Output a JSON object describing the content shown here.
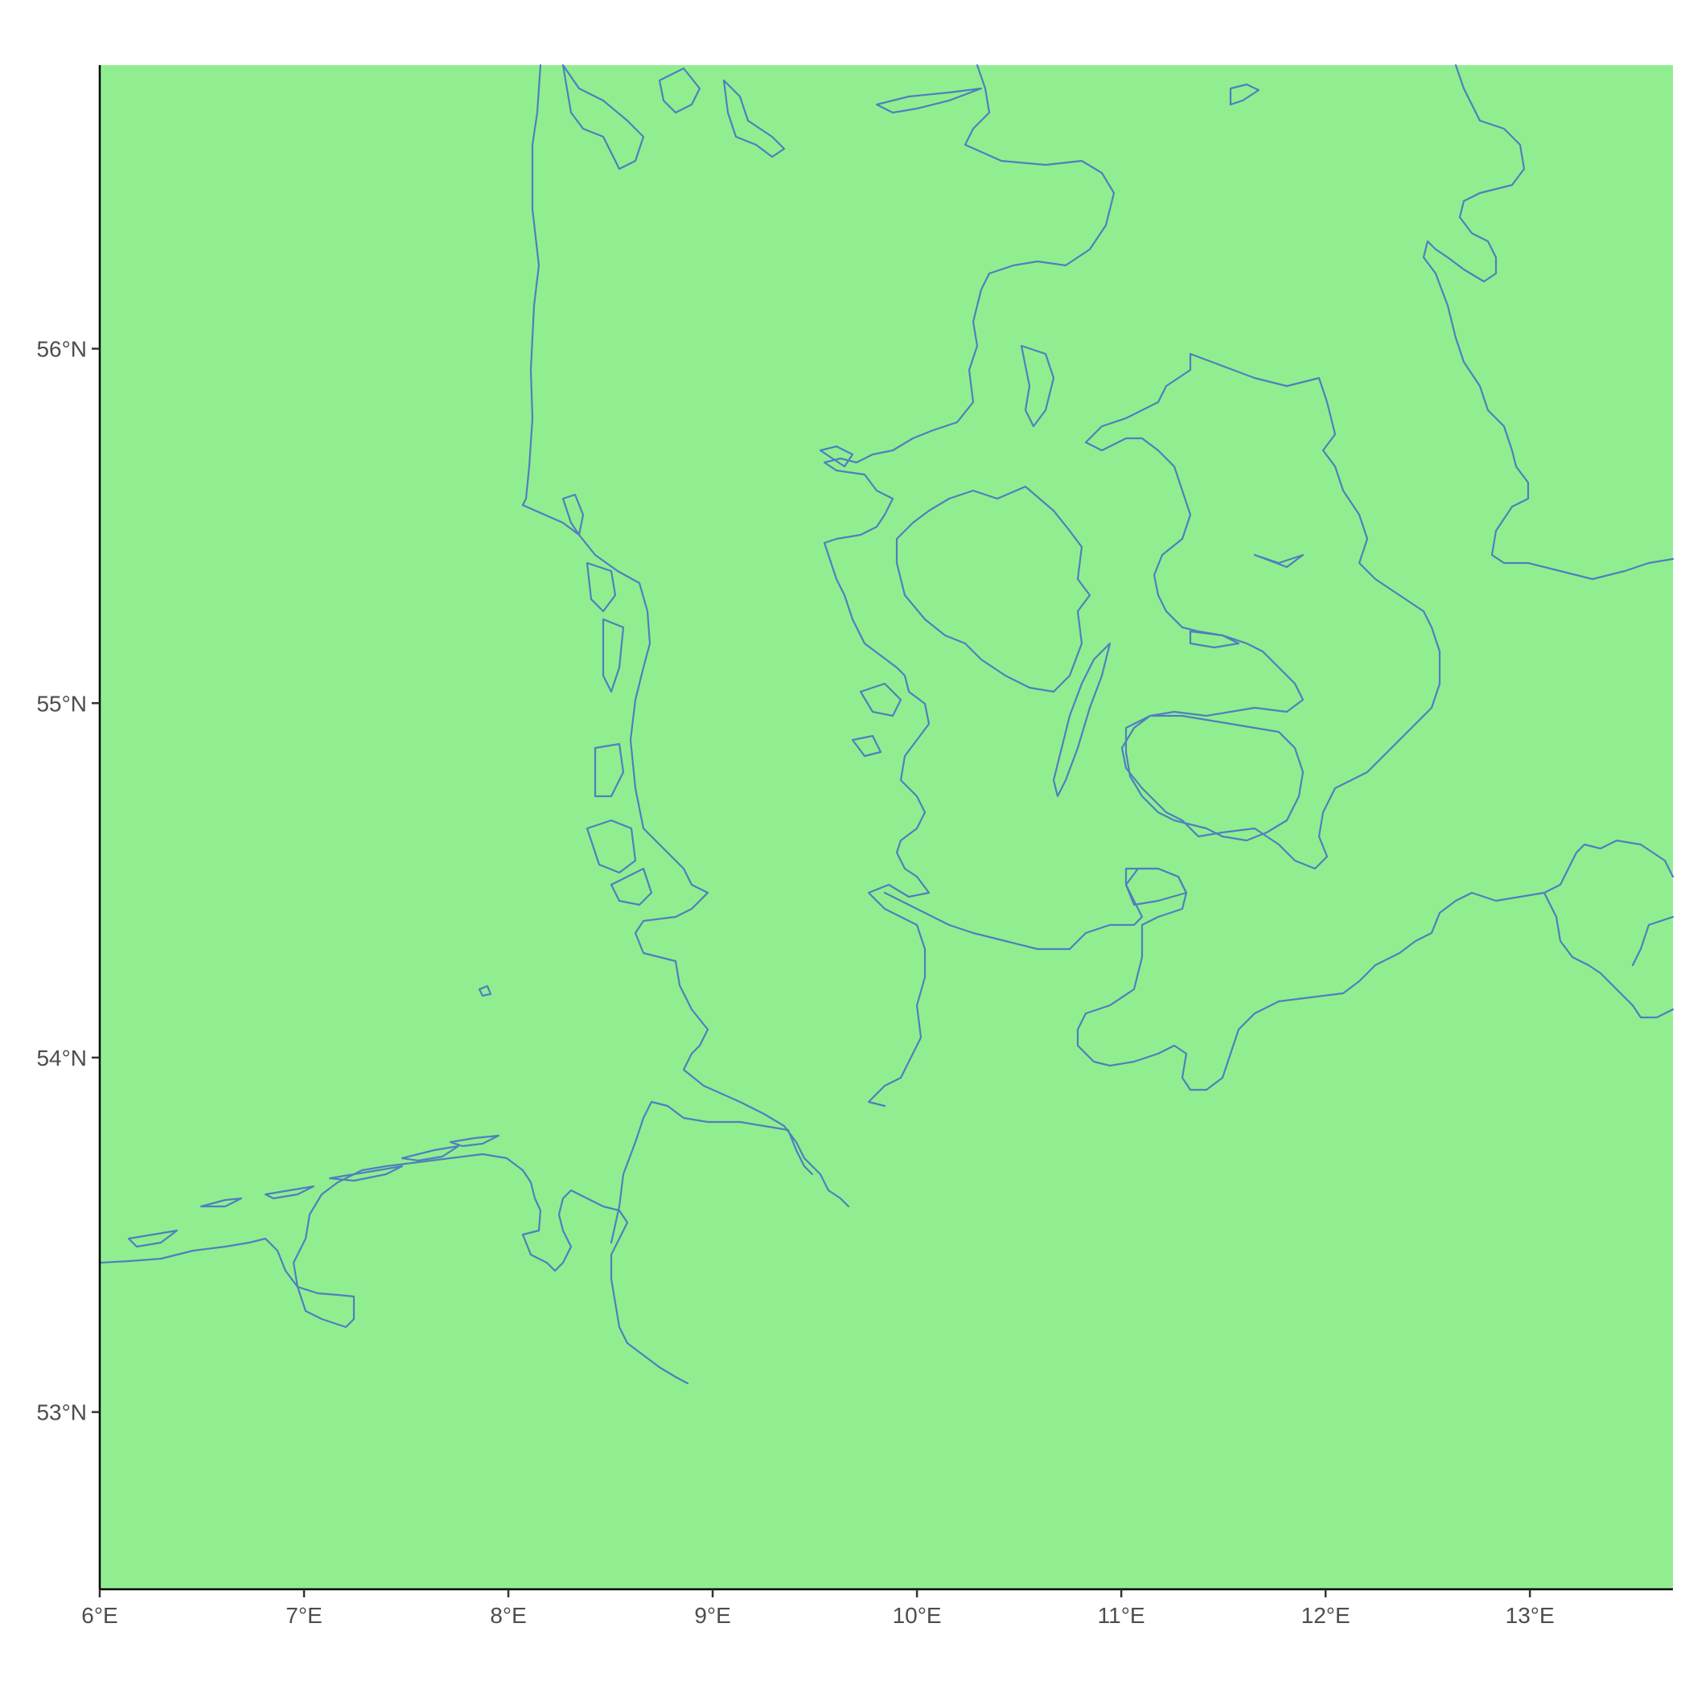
{
  "map": {
    "land_color": "#90ee90",
    "coastline_color": "#4f7fbf",
    "x_ticks": [
      {
        "value": 6,
        "label": "6°E"
      },
      {
        "value": 7,
        "label": "7°E"
      },
      {
        "value": 8,
        "label": "8°E"
      },
      {
        "value": 9,
        "label": "9°E"
      },
      {
        "value": 10,
        "label": "10°E"
      },
      {
        "value": 11,
        "label": "11°E"
      },
      {
        "value": 12,
        "label": "12°E"
      },
      {
        "value": 13,
        "label": "13°E"
      }
    ],
    "y_ticks": [
      {
        "value": 56,
        "label": "56°N"
      },
      {
        "value": 55,
        "label": "55°N"
      },
      {
        "value": 54,
        "label": "54°N"
      },
      {
        "value": 53,
        "label": "53°N"
      }
    ],
    "lon_range": [
      6,
      13.7
    ],
    "lat_range": [
      52.5,
      56.8
    ]
  }
}
